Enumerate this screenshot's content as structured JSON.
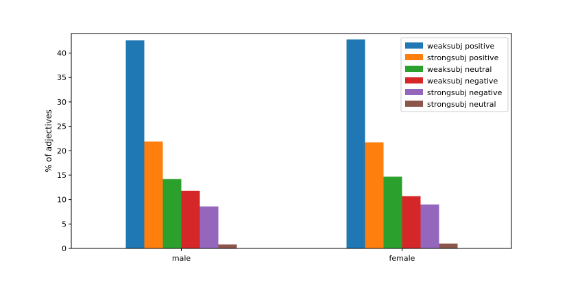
{
  "chart_data": {
    "type": "bar",
    "title": "",
    "xlabel": "",
    "ylabel": "% of adjectives",
    "categories": [
      "male",
      "female"
    ],
    "ylim": [
      0,
      44
    ],
    "yticks": [
      0,
      5,
      10,
      15,
      20,
      25,
      30,
      35,
      40
    ],
    "grid": false,
    "legend_position": "top-right",
    "series": [
      {
        "name": "weaksubj positive",
        "color": "#1f77b4",
        "values": [
          42.6,
          42.8
        ]
      },
      {
        "name": "strongsubj positive",
        "color": "#ff7f0e",
        "values": [
          21.9,
          21.7
        ]
      },
      {
        "name": "weaksubj neutral",
        "color": "#2ca02c",
        "values": [
          14.2,
          14.7
        ]
      },
      {
        "name": "weaksubj negative",
        "color": "#d62728",
        "values": [
          11.8,
          10.7
        ]
      },
      {
        "name": "strongsubj negative",
        "color": "#9467bd",
        "values": [
          8.6,
          9.0
        ]
      },
      {
        "name": "strongsubj neutral",
        "color": "#8c564b",
        "values": [
          0.8,
          1.0
        ]
      }
    ]
  }
}
